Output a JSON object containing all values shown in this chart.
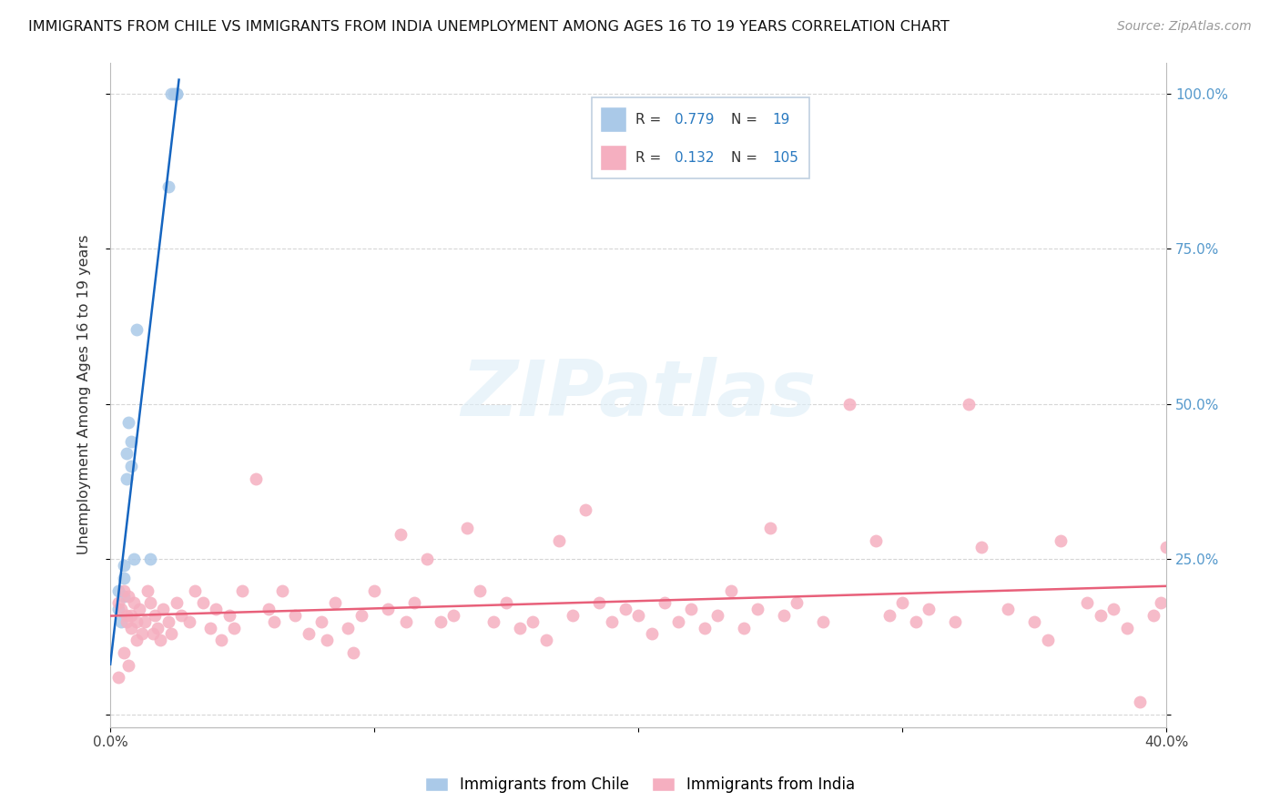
{
  "title": "IMMIGRANTS FROM CHILE VS IMMIGRANTS FROM INDIA UNEMPLOYMENT AMONG AGES 16 TO 19 YEARS CORRELATION CHART",
  "source": "Source: ZipAtlas.com",
  "ylabel": "Unemployment Among Ages 16 to 19 years",
  "xlim": [
    0.0,
    0.4
  ],
  "ylim": [
    -0.02,
    1.05
  ],
  "chile_R": 0.779,
  "chile_N": 19,
  "india_R": 0.132,
  "india_N": 105,
  "chile_color": "#aac9e8",
  "india_color": "#f5afc0",
  "chile_line_color": "#1565c0",
  "india_line_color": "#e8607a",
  "legend_text_color": "#2979c0",
  "legend_border_color": "#c8d8e8",
  "watermark_color": "#ddeef8",
  "chile_x": [
    0.003,
    0.003,
    0.004,
    0.005,
    0.005,
    0.005,
    0.006,
    0.006,
    0.007,
    0.008,
    0.008,
    0.009,
    0.01,
    0.015,
    0.022,
    0.023,
    0.024,
    0.025,
    0.025
  ],
  "chile_y": [
    0.17,
    0.2,
    0.15,
    0.22,
    0.19,
    0.24,
    0.38,
    0.42,
    0.47,
    0.4,
    0.44,
    0.25,
    0.62,
    0.25,
    0.85,
    1.0,
    1.0,
    1.0,
    1.0
  ],
  "india_x": [
    0.003,
    0.004,
    0.005,
    0.006,
    0.006,
    0.007,
    0.008,
    0.008,
    0.009,
    0.01,
    0.01,
    0.011,
    0.012,
    0.013,
    0.014,
    0.015,
    0.016,
    0.017,
    0.018,
    0.019,
    0.02,
    0.022,
    0.023,
    0.025,
    0.027,
    0.03,
    0.032,
    0.035,
    0.038,
    0.04,
    0.042,
    0.045,
    0.047,
    0.05,
    0.055,
    0.06,
    0.062,
    0.065,
    0.07,
    0.075,
    0.08,
    0.082,
    0.085,
    0.09,
    0.092,
    0.095,
    0.1,
    0.105,
    0.11,
    0.112,
    0.115,
    0.12,
    0.125,
    0.13,
    0.135,
    0.14,
    0.145,
    0.15,
    0.155,
    0.16,
    0.165,
    0.17,
    0.175,
    0.18,
    0.185,
    0.19,
    0.195,
    0.2,
    0.205,
    0.21,
    0.215,
    0.22,
    0.225,
    0.23,
    0.235,
    0.24,
    0.245,
    0.25,
    0.255,
    0.26,
    0.27,
    0.28,
    0.29,
    0.295,
    0.3,
    0.305,
    0.31,
    0.32,
    0.325,
    0.33,
    0.34,
    0.35,
    0.355,
    0.36,
    0.37,
    0.375,
    0.38,
    0.385,
    0.39,
    0.395,
    0.398,
    0.4,
    0.005,
    0.007,
    0.003
  ],
  "india_y": [
    0.18,
    0.17,
    0.2,
    0.16,
    0.15,
    0.19,
    0.14,
    0.16,
    0.18,
    0.12,
    0.15,
    0.17,
    0.13,
    0.15,
    0.2,
    0.18,
    0.13,
    0.16,
    0.14,
    0.12,
    0.17,
    0.15,
    0.13,
    0.18,
    0.16,
    0.15,
    0.2,
    0.18,
    0.14,
    0.17,
    0.12,
    0.16,
    0.14,
    0.2,
    0.38,
    0.17,
    0.15,
    0.2,
    0.16,
    0.13,
    0.15,
    0.12,
    0.18,
    0.14,
    0.1,
    0.16,
    0.2,
    0.17,
    0.29,
    0.15,
    0.18,
    0.25,
    0.15,
    0.16,
    0.3,
    0.2,
    0.15,
    0.18,
    0.14,
    0.15,
    0.12,
    0.28,
    0.16,
    0.33,
    0.18,
    0.15,
    0.17,
    0.16,
    0.13,
    0.18,
    0.15,
    0.17,
    0.14,
    0.16,
    0.2,
    0.14,
    0.17,
    0.3,
    0.16,
    0.18,
    0.15,
    0.5,
    0.28,
    0.16,
    0.18,
    0.15,
    0.17,
    0.15,
    0.5,
    0.27,
    0.17,
    0.15,
    0.12,
    0.28,
    0.18,
    0.16,
    0.17,
    0.14,
    0.02,
    0.16,
    0.18,
    0.27,
    0.1,
    0.08,
    0.06
  ]
}
